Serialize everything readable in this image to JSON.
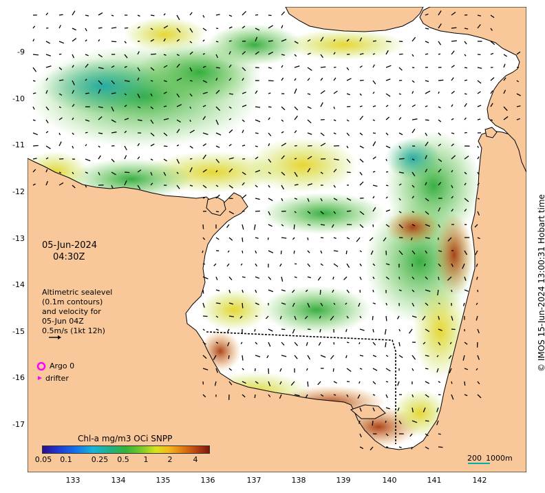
{
  "colors": {
    "land": "#f8c89a",
    "ocean": "#ffffff",
    "coast": "#000000",
    "argo": "#ff00ff",
    "drifter": "#ff00ff",
    "scale_bar": "#00b0a0"
  },
  "axes": {
    "lat_labels": [
      "-9",
      "-10",
      "-11",
      "-12",
      "-13",
      "-14",
      "-15",
      "-16",
      "-17"
    ],
    "lon_labels": [
      "133",
      "134",
      "135",
      "136",
      "137",
      "138",
      "139",
      "140",
      "141",
      "142"
    ]
  },
  "date": "05-Jun-2024",
  "time": "04:30Z",
  "sealevel_note": {
    "line1": "Altimetric sealevel",
    "line2": "(0.1m contours)",
    "line3": "and velocity for",
    "line4": "05-Jun 04Z",
    "line5": "0.5m/s (1kt 12h)"
  },
  "legend": {
    "argo": "Argo 0",
    "drifter": "drifter"
  },
  "colorbar": {
    "title": "Chl-a mg/m3 OCi SNPP",
    "ticks": [
      "0.05",
      "0.1",
      "0.25",
      "0.5",
      "1",
      "2",
      "4"
    ]
  },
  "scale": {
    "label1": "200",
    "label2": "1000m"
  },
  "copyright": "© IMOS 15-Jun-2024 13:00:31 Hobart time"
}
